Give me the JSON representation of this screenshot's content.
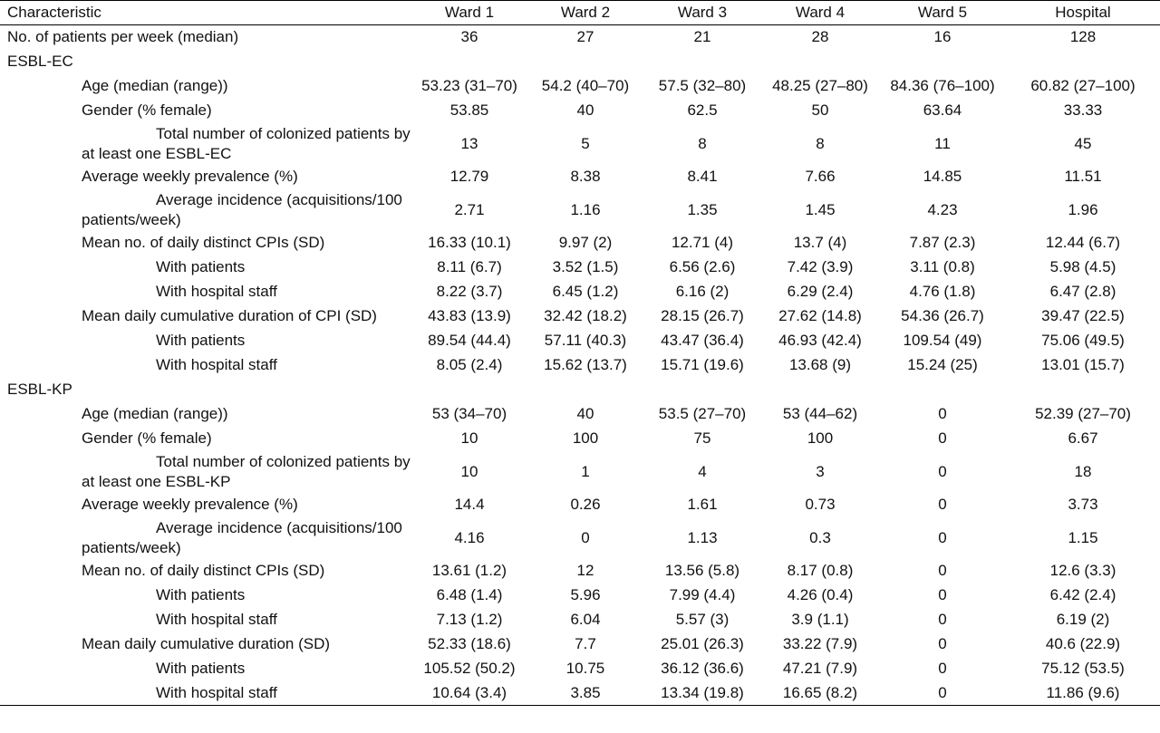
{
  "table": {
    "headers": [
      "Characteristic",
      "Ward 1",
      "Ward 2",
      "Ward 3",
      "Ward 4",
      "Ward 5",
      "Hospital"
    ],
    "rows": [
      {
        "label": "No. of patients per week (median)",
        "indent": 0,
        "values": [
          "36",
          "27",
          "21",
          "28",
          "16",
          "128"
        ]
      },
      {
        "label": "ESBL-EC",
        "indent": 0,
        "values": [
          "",
          "",
          "",
          "",
          "",
          ""
        ]
      },
      {
        "label": "Age (median (range))",
        "indent": 1,
        "values": [
          "53.23 (31–70)",
          "54.2 (40–70)",
          "57.5 (32–80)",
          "48.25 (27–80)",
          "84.36 (76–100)",
          "60.82 (27–100)"
        ]
      },
      {
        "label": "Gender (% female)",
        "indent": 1,
        "values": [
          "53.85",
          "40",
          "62.5",
          "50",
          "63.64",
          "33.33"
        ]
      },
      {
        "label": "Total number of colonized patients by at least one ESBL-EC",
        "indent": 1,
        "wrap": true,
        "values": [
          "13",
          "5",
          "8",
          "8",
          "11",
          "45"
        ]
      },
      {
        "label": "Average weekly prevalence (%)",
        "indent": 1,
        "values": [
          "12.79",
          "8.38",
          "8.41",
          "7.66",
          "14.85",
          "11.51"
        ]
      },
      {
        "label": "Average incidence (acquisitions/100 patients/week)",
        "indent": 1,
        "wrap": true,
        "values": [
          "2.71",
          "1.16",
          "1.35",
          "1.45",
          "4.23",
          "1.96"
        ]
      },
      {
        "label": "Mean no. of daily distinct CPIs (SD)",
        "indent": 1,
        "values": [
          "16.33 (10.1)",
          "9.97 (2)",
          "12.71 (4)",
          "13.7 (4)",
          "7.87 (2.3)",
          "12.44 (6.7)"
        ]
      },
      {
        "label": "With patients",
        "indent": 2,
        "values": [
          "8.11 (6.7)",
          "3.52 (1.5)",
          "6.56 (2.6)",
          "7.42 (3.9)",
          "3.11 (0.8)",
          "5.98 (4.5)"
        ]
      },
      {
        "label": "With hospital staff",
        "indent": 2,
        "values": [
          "8.22 (3.7)",
          "6.45 (1.2)",
          "6.16 (2)",
          "6.29 (2.4)",
          "4.76 (1.8)",
          "6.47 (2.8)"
        ]
      },
      {
        "label": "Mean daily cumulative duration of CPI (SD)",
        "indent": 1,
        "values": [
          "43.83 (13.9)",
          "32.42 (18.2)",
          "28.15 (26.7)",
          "27.62 (14.8)",
          "54.36 (26.7)",
          "39.47 (22.5)"
        ]
      },
      {
        "label": "With patients",
        "indent": 2,
        "values": [
          "89.54 (44.4)",
          "57.11 (40.3)",
          "43.47 (36.4)",
          "46.93 (42.4)",
          "109.54 (49)",
          "75.06 (49.5)"
        ]
      },
      {
        "label": "With hospital staff",
        "indent": 2,
        "values": [
          "8.05 (2.4)",
          "15.62 (13.7)",
          "15.71 (19.6)",
          "13.68 (9)",
          "15.24 (25)",
          "13.01 (15.7)"
        ]
      },
      {
        "label": "ESBL-KP",
        "indent": 0,
        "values": [
          "",
          "",
          "",
          "",
          "",
          ""
        ]
      },
      {
        "label": "Age (median (range))",
        "indent": 1,
        "values": [
          "53 (34–70)",
          "40",
          "53.5 (27–70)",
          "53 (44–62)",
          "0",
          "52.39 (27–70)"
        ]
      },
      {
        "label": "Gender (% female)",
        "indent": 1,
        "values": [
          "10",
          "100",
          "75",
          "100",
          "0",
          "6.67"
        ]
      },
      {
        "label": "Total number of colonized patients by at least one ESBL-KP",
        "indent": 1,
        "wrap": true,
        "values": [
          "10",
          "1",
          "4",
          "3",
          "0",
          "18"
        ]
      },
      {
        "label": "Average weekly prevalence (%)",
        "indent": 1,
        "values": [
          "14.4",
          "0.26",
          "1.61",
          "0.73",
          "0",
          "3.73"
        ]
      },
      {
        "label": "Average incidence (acquisitions/100 patients/week)",
        "indent": 1,
        "wrap": true,
        "values": [
          "4.16",
          "0",
          "1.13",
          "0.3",
          "0",
          "1.15"
        ]
      },
      {
        "label": "Mean no. of daily distinct CPIs (SD)",
        "indent": 1,
        "values": [
          "13.61 (1.2)",
          "12",
          "13.56 (5.8)",
          "8.17 (0.8)",
          "0",
          "12.6 (3.3)"
        ]
      },
      {
        "label": "With patients",
        "indent": 2,
        "values": [
          "6.48 (1.4)",
          "5.96",
          "7.99 (4.4)",
          "4.26 (0.4)",
          "0",
          "6.42 (2.4)"
        ]
      },
      {
        "label": "With hospital staff",
        "indent": 2,
        "values": [
          "7.13 (1.2)",
          "6.04",
          "5.57 (3)",
          "3.9 (1.1)",
          "0",
          "6.19 (2)"
        ]
      },
      {
        "label": "Mean daily cumulative duration (SD)",
        "indent": 1,
        "values": [
          "52.33 (18.6)",
          "7.7",
          "25.01 (26.3)",
          "33.22 (7.9)",
          "0",
          "40.6 (22.9)"
        ]
      },
      {
        "label": "With patients",
        "indent": 2,
        "values": [
          "105.52 (50.2)",
          "10.75",
          "36.12 (36.6)",
          "47.21 (7.9)",
          "0",
          "75.12 (53.5)"
        ]
      },
      {
        "label": "With hospital staff",
        "indent": 2,
        "values": [
          "10.64 (3.4)",
          "3.85",
          "13.34 (19.8)",
          "16.65 (8.2)",
          "0",
          "11.86 (9.6)"
        ]
      }
    ]
  }
}
